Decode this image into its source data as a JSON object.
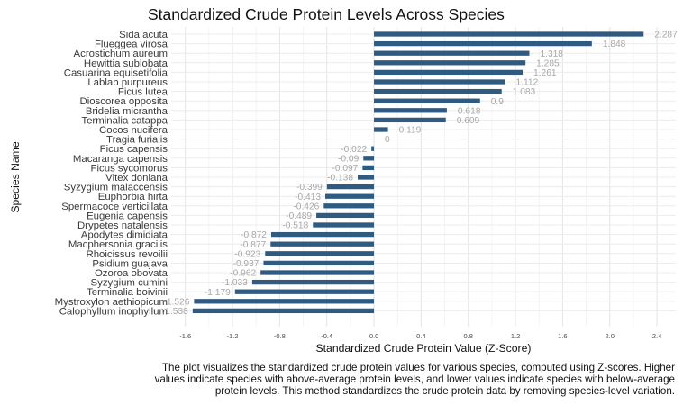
{
  "chart_data": {
    "type": "bar",
    "orientation": "horizontal",
    "title": "Standardized Crude Protein Levels Across Species",
    "xlabel": "Standardized Crude Protein Value (Z-Score)",
    "ylabel": "Species Name",
    "xlim": [
      -1.72,
      2.56
    ],
    "xticks": [
      -1.6,
      -1.2,
      -0.8,
      -0.4,
      0.0,
      0.4,
      0.8,
      1.2,
      1.6,
      2.0,
      2.4
    ],
    "grid": true,
    "bar_color": "#2f5a82",
    "label_color": "#a8a8a8",
    "categories": [
      "Sida acuta",
      "Flueggea virosa",
      "Acrostichum aureum",
      "Hewittia sublobata",
      "Casuarina equisetifolia",
      "Lablab purpureus",
      "Ficus lutea",
      "Dioscorea opposita",
      "Bridelia micrantha",
      "Terminalia catappa",
      "Cocos nucifera",
      "Tragia furialis",
      "Ficus capensis",
      "Macaranga capensis",
      "Ficus sycomorus",
      "Vitex doniana",
      "Syzygium malaccensis",
      "Euphorbia hirta",
      "Spermacoce verticillata",
      "Eugenia capensis",
      "Drypetes natalensis",
      "Apodytes dimidiata",
      "Macphersonia gracilis",
      "Rhoicissus revoilii",
      "Psidium guajava",
      "Ozoroa obovata",
      "Syzygium cumini",
      "Terminalia boivinii",
      "Mystroxylon aethiopicum",
      "Calophyllum inophyllum"
    ],
    "values": [
      2.287,
      1.848,
      1.318,
      1.285,
      1.261,
      1.112,
      1.083,
      0.9,
      0.618,
      0.609,
      0.119,
      0,
      -0.022,
      -0.09,
      -0.097,
      -0.138,
      -0.399,
      -0.413,
      -0.426,
      -0.489,
      -0.518,
      -0.872,
      -0.877,
      -0.923,
      -0.937,
      -0.962,
      -1.033,
      -1.179,
      -1.526,
      -1.538
    ],
    "value_labels": [
      "2.287",
      "1.848",
      "1.318",
      "1.285",
      "1.261",
      "1.112",
      "1.083",
      "0.9",
      "0.618",
      "0.609",
      "0.119",
      "0",
      "-0.022",
      "-0.09",
      "-0.097",
      "-0.138",
      "-0.399",
      "-0.413",
      "-0.426",
      "-0.489",
      "-0.518",
      "-0.872",
      "-0.877",
      "-0.923",
      "-0.937",
      "-0.962",
      "-1.033",
      "-1.179",
      "-1.526",
      "-1.538"
    ]
  },
  "caption": "The plot visualizes the standardized crude protein values for various species, computed using Z-scores. Higher values indicate species with above-average protein levels, and lower values indicate species with below-average protein levels. This method standardizes the crude protein data by removing species-level variation."
}
